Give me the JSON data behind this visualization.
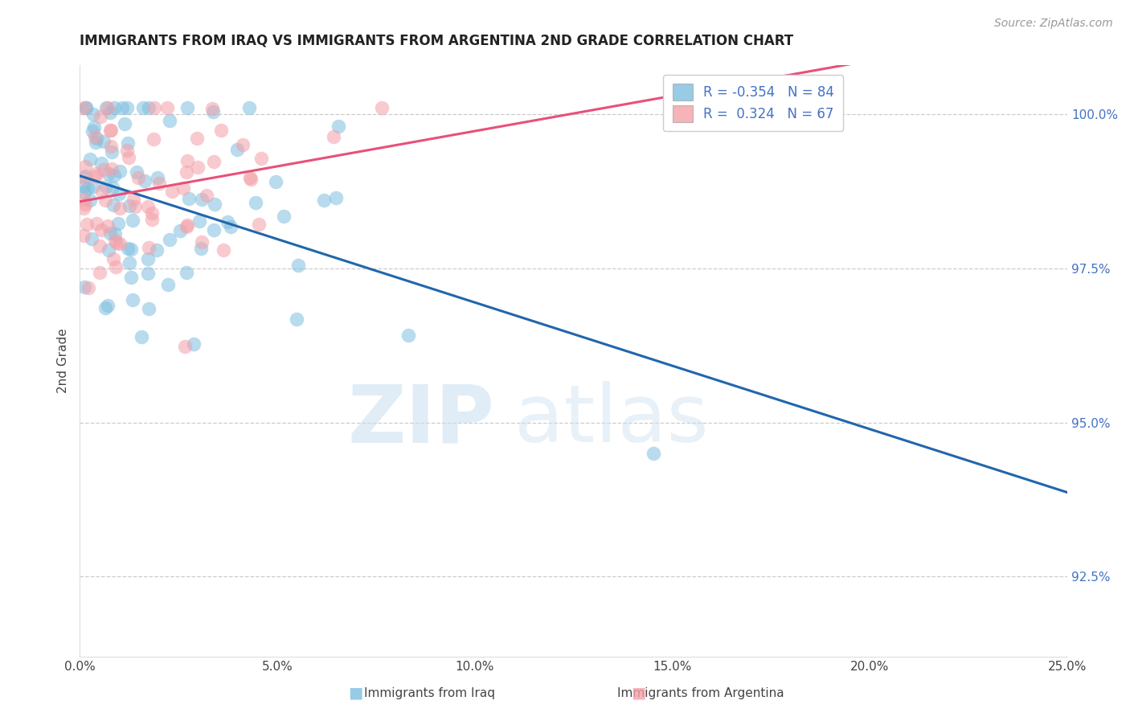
{
  "title": "IMMIGRANTS FROM IRAQ VS IMMIGRANTS FROM ARGENTINA 2ND GRADE CORRELATION CHART",
  "source": "Source: ZipAtlas.com",
  "ylabel": "2nd Grade",
  "yaxis_labels": [
    "100.0%",
    "97.5%",
    "95.0%",
    "92.5%"
  ],
  "yaxis_values": [
    1.0,
    0.975,
    0.95,
    0.925
  ],
  "xmin": 0.0,
  "xmax": 0.25,
  "ymin": 0.912,
  "ymax": 1.008,
  "legend_iraq_r": "-0.354",
  "legend_iraq_n": "84",
  "legend_arg_r": "0.324",
  "legend_arg_n": "67",
  "color_iraq": "#7fbfdf",
  "color_argentina": "#f4a0a8",
  "color_trendline_iraq": "#2166ac",
  "color_trendline_argentina": "#e8507a",
  "iraq_seed": 77,
  "arg_seed": 55
}
